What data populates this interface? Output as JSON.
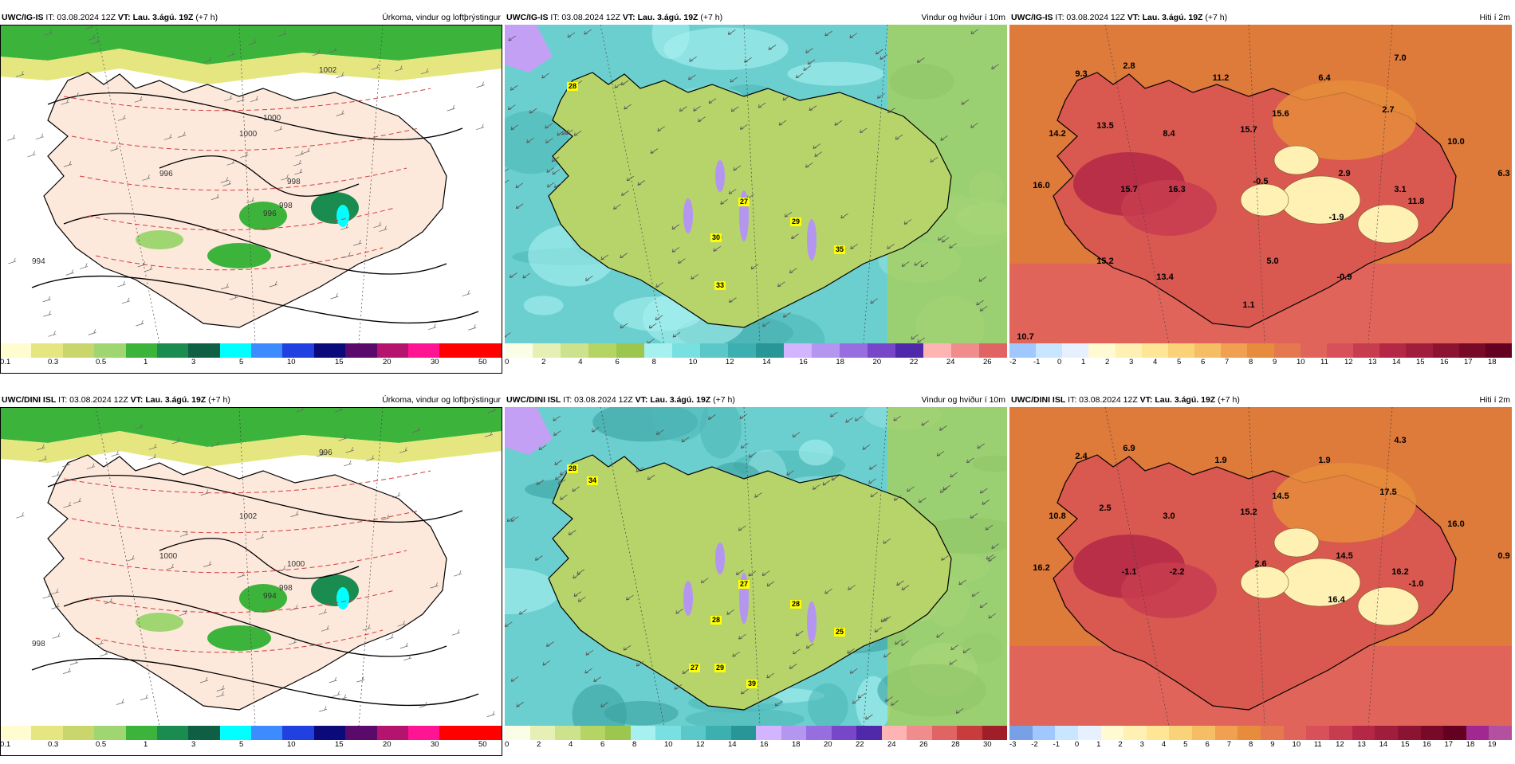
{
  "panels": [
    {
      "model": "UWC/IG-IS",
      "it": "IT: 03.08.2024 12Z",
      "vt": "VT: Lau. 3.ágú. 19Z",
      "lead": "(+7 h)",
      "title": "Úrkoma, vindur og loftþrýstingur",
      "type": "precip",
      "cbar": [
        "#fffccf",
        "#e6e680",
        "#c8d66b",
        "#9fd672",
        "#3cb43c",
        "#1a8c50",
        "#0f5f45",
        "#00ffff",
        "#3c8cff",
        "#2040e0",
        "#0a0a7a",
        "#5a0a6a",
        "#b4146e",
        "#ff1493",
        "#ff0000",
        "#ff0000"
      ],
      "ticks": [
        "0.1",
        "0.3",
        "0.5",
        "1",
        "3",
        "5",
        "10",
        "15",
        "20",
        "30",
        "50"
      ],
      "labels": [],
      "isobars": [
        "1000",
        "998",
        "996",
        "1002",
        "994",
        "996",
        "998",
        "1000"
      ]
    },
    {
      "model": "UWC/IG-IS",
      "it": "IT: 03.08.2024 12Z",
      "vt": "VT: Lau. 3.ágú. 19Z",
      "lead": "(+7 h)",
      "title": "Vindur og hviður í 10m",
      "type": "wind",
      "cbar": [
        "#fbfde6",
        "#e6f0b4",
        "#cde28c",
        "#b4d464",
        "#9cc64e",
        "#a6f0f0",
        "#78e0e0",
        "#5ac8c8",
        "#3cb0b0",
        "#289696",
        "#d2b4ff",
        "#b496f0",
        "#966ee0",
        "#7846c8",
        "#5028aa",
        "#ffb4b4",
        "#f08c8c",
        "#e06464"
      ],
      "ticks": [
        "0",
        "2",
        "4",
        "6",
        "8",
        "10",
        "12",
        "14",
        "16",
        "18",
        "20",
        "22",
        "24",
        "26"
      ],
      "labels": [
        "28",
        "27",
        "30",
        "33",
        "29",
        "35"
      ]
    },
    {
      "model": "UWC/IG-IS",
      "it": "IT: 03.08.2024 12Z",
      "vt": "VT: Lau. 3.ágú. 19Z",
      "lead": "(+7 h)",
      "title": "Hiti í 2m",
      "type": "temp",
      "cbar": [
        "#a0c8ff",
        "#c8e6ff",
        "#e6f0ff",
        "#fffad2",
        "#fff0b4",
        "#ffe696",
        "#fad278",
        "#f5be64",
        "#f0a050",
        "#e68c3c",
        "#e67850",
        "#e0645a",
        "#d8505a",
        "#c83c50",
        "#b42846",
        "#a01e3c",
        "#8c1432",
        "#780a28",
        "#640020"
      ],
      "ticks": [
        "-2",
        "-1",
        "0",
        "1",
        "2",
        "3",
        "4",
        "5",
        "6",
        "7",
        "8",
        "9",
        "10",
        "11",
        "12",
        "13",
        "14",
        "15",
        "16",
        "17",
        "18"
      ],
      "labels": [
        "9.3",
        "2.8",
        "14.2",
        "13.5",
        "8.4",
        "11.2",
        "15.7",
        "15.6",
        "6.4",
        "7.0",
        "2.7",
        "10.0",
        "16.0",
        "15.7",
        "16.3",
        "-0.5",
        "2.9",
        "3.1",
        "11.8",
        "-1.9",
        "6.3",
        "15.2",
        "13.4",
        "5.0",
        "-0.9",
        "1.1",
        "10.7"
      ]
    },
    {
      "model": "UWC/DINI ISL",
      "it": "IT: 03.08.2024 12Z",
      "vt": "VT: Lau. 3.ágú. 19Z",
      "lead": "(+7 h)",
      "title": "Úrkoma, vindur og loftþrýstingur",
      "type": "precip",
      "cbar": [
        "#fffccf",
        "#e6e680",
        "#c8d66b",
        "#9fd672",
        "#3cb43c",
        "#1a8c50",
        "#0f5f45",
        "#00ffff",
        "#3c8cff",
        "#2040e0",
        "#0a0a7a",
        "#5a0a6a",
        "#b4146e",
        "#ff1493",
        "#ff0000",
        "#ff0000"
      ],
      "ticks": [
        "0.1",
        "0.3",
        "0.5",
        "1",
        "3",
        "5",
        "10",
        "15",
        "20",
        "30",
        "50"
      ],
      "labels": [],
      "isobars": [
        "1002",
        "998",
        "1000",
        "996",
        "998",
        "994",
        "1000"
      ]
    },
    {
      "model": "UWC/DINI ISL",
      "it": "IT: 03.08.2024 12Z",
      "vt": "VT: Lau. 3.ágú. 19Z",
      "lead": "(+7 h)",
      "title": "Vindur og hviður í 10m",
      "type": "wind",
      "cbar": [
        "#fbfde6",
        "#e6f0b4",
        "#cde28c",
        "#b4d464",
        "#9cc64e",
        "#a6f0f0",
        "#78e0e0",
        "#5ac8c8",
        "#3cb0b0",
        "#289696",
        "#d2b4ff",
        "#b496f0",
        "#966ee0",
        "#7846c8",
        "#5028aa",
        "#ffb4b4",
        "#f08c8c",
        "#e06464",
        "#c83c3c",
        "#a01e28"
      ],
      "ticks": [
        "0",
        "2",
        "4",
        "6",
        "8",
        "10",
        "12",
        "14",
        "16",
        "18",
        "20",
        "22",
        "24",
        "26",
        "28",
        "30"
      ],
      "labels": [
        "28",
        "27",
        "28",
        "29",
        "28",
        "25",
        "34",
        "27",
        "39"
      ]
    },
    {
      "model": "UWC/DINI ISL",
      "it": "IT: 03.08.2024 12Z",
      "vt": "VT: Lau. 3.ágú. 19Z",
      "lead": "(+7 h)",
      "title": "Hiti í 2m",
      "type": "temp",
      "cbar": [
        "#78a0e6",
        "#a0c8ff",
        "#c8e6ff",
        "#e6f0ff",
        "#fffad2",
        "#fff0b4",
        "#ffe696",
        "#fad278",
        "#f5be64",
        "#f0a050",
        "#e68c3c",
        "#e67850",
        "#e0645a",
        "#d8505a",
        "#c83c50",
        "#b42846",
        "#a01e3c",
        "#8c1432",
        "#780a28",
        "#640020",
        "#a02890",
        "#b450a0"
      ],
      "ticks": [
        "-3",
        "-2",
        "-1",
        "0",
        "1",
        "2",
        "3",
        "4",
        "5",
        "6",
        "7",
        "8",
        "9",
        "10",
        "11",
        "12",
        "13",
        "14",
        "15",
        "16",
        "17",
        "18",
        "19"
      ],
      "labels": [
        "2.4",
        "6.9",
        "10.8",
        "2.5",
        "3.0",
        "1.9",
        "15.2",
        "14.5",
        "1.9",
        "4.3",
        "17.5",
        "16.0",
        "16.2",
        "-1.1",
        "-2.2",
        "2.6",
        "14.5",
        "16.2",
        "-1.0",
        "16.4",
        "0.9"
      ]
    }
  ]
}
